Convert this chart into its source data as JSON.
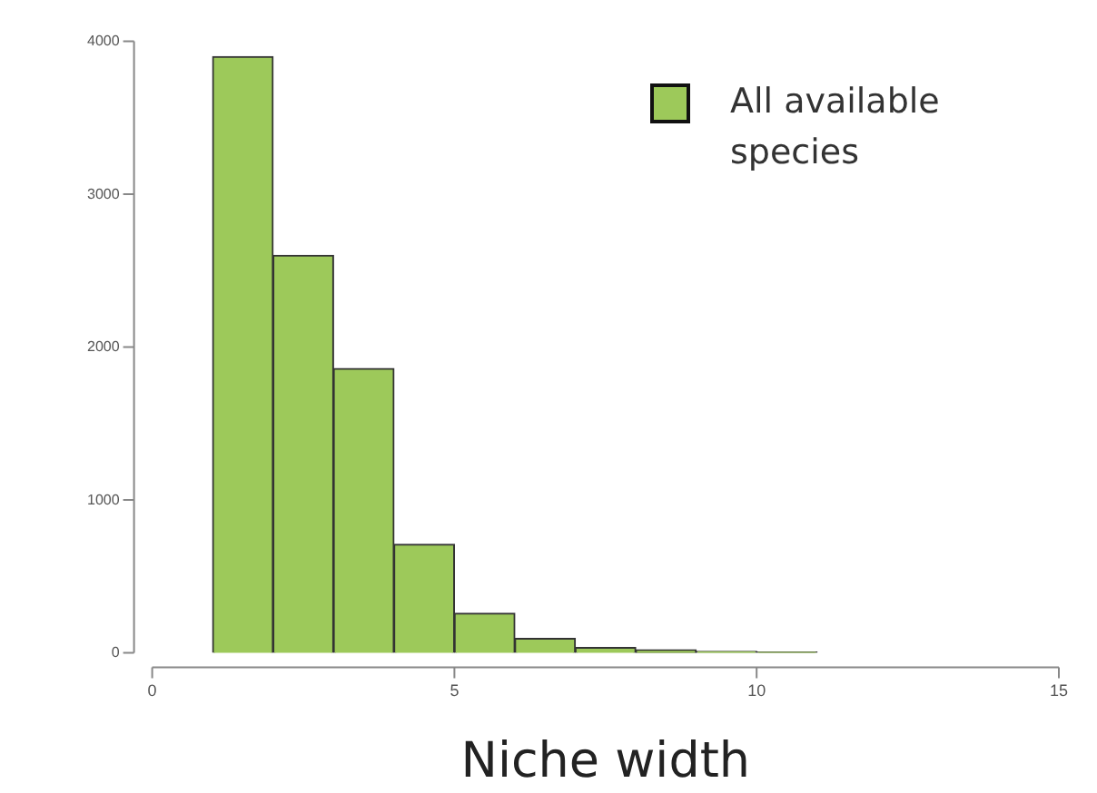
{
  "chart_data": {
    "type": "histogram",
    "xlabel": "Niche width",
    "bins": [
      1,
      2,
      3,
      4,
      5,
      6,
      7,
      8,
      9,
      10,
      11,
      12,
      13,
      14,
      15
    ],
    "series": [
      {
        "name": "All available species",
        "color": "#9dc95a",
        "values": [
          3900,
          2600,
          1860,
          710,
          260,
          95,
          35,
          20,
          10,
          5,
          0,
          0,
          0,
          0
        ]
      }
    ],
    "xlim": [
      0,
      15
    ],
    "xticks": [
      0,
      5,
      10,
      15
    ],
    "ylim": [
      0,
      4000
    ],
    "yticks": [
      0,
      1000,
      2000,
      3000,
      4000
    ],
    "grid": false,
    "legend": "top right"
  }
}
